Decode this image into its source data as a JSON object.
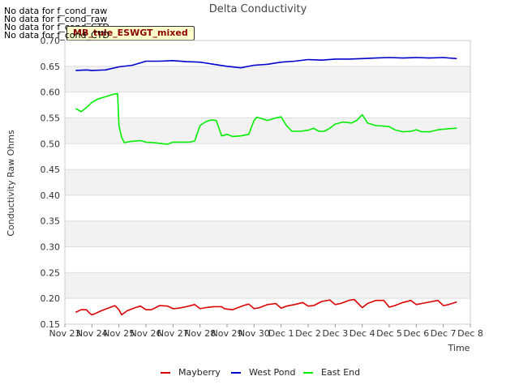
{
  "notices": [
    "No data for f_cond_raw",
    "No data for f_cond_raw",
    "No data for f_cond_CTD",
    "No data for f_cond_CTD"
  ],
  "badge": "MB_tule_ESWGT_mixed",
  "chart_data": {
    "type": "line",
    "title": "Delta Conductivity",
    "xlabel": "Time",
    "ylabel": "Conductivity Raw Ohms",
    "ylim": [
      0.15,
      0.7
    ],
    "yticks": [
      0.15,
      0.2,
      0.25,
      0.3,
      0.35,
      0.4,
      0.45,
      0.5,
      0.55,
      0.6,
      0.65,
      0.7
    ],
    "yticklabels": [
      "0.15",
      "0.20",
      "0.25",
      "0.30",
      "0.35",
      "0.40",
      "0.45",
      "0.50",
      "0.55",
      "0.60",
      "0.65",
      "0.70"
    ],
    "xlim": [
      0,
      15
    ],
    "xticks": [
      0,
      1,
      2,
      3,
      4,
      5,
      6,
      7,
      8,
      9,
      10,
      11,
      12,
      13,
      14,
      15
    ],
    "xticklabels": [
      "Nov 23",
      "Nov 24",
      "Nov 25",
      "Nov 26",
      "Nov 27",
      "Nov 28",
      "Nov 29",
      "Nov 30",
      "Dec 1",
      "Dec 2",
      "Dec 3",
      "Dec 4",
      "Dec 5",
      "Dec 6",
      "Dec 7",
      "Dec 8"
    ],
    "grid": true,
    "legend_position": "bottom",
    "series": [
      {
        "name": "Mayberry",
        "color": "#dd0000",
        "x": [
          0.4,
          0.6,
          0.8,
          0.9,
          1.0,
          1.1,
          1.3,
          1.5,
          1.7,
          1.85,
          2.0,
          2.1,
          2.3,
          2.6,
          2.8,
          3.0,
          3.2,
          3.5,
          3.8,
          4.0,
          4.2,
          4.5,
          4.8,
          5.0,
          5.2,
          5.5,
          5.8,
          5.9,
          6.2,
          6.5,
          6.6,
          6.8,
          7.0,
          7.2,
          7.5,
          7.8,
          8.0,
          8.2,
          8.5,
          8.8,
          9.0,
          9.2,
          9.5,
          9.8,
          10.0,
          10.2,
          10.5,
          10.7,
          11.0,
          11.2,
          11.5,
          11.8,
          12.0,
          12.2,
          12.5,
          12.8,
          13.0,
          13.2,
          13.5,
          13.8,
          14.0,
          14.2,
          14.5
        ],
        "y": [
          0.173,
          0.178,
          0.178,
          0.172,
          0.168,
          0.17,
          0.175,
          0.179,
          0.183,
          0.186,
          0.178,
          0.168,
          0.176,
          0.182,
          0.185,
          0.178,
          0.178,
          0.186,
          0.185,
          0.18,
          0.181,
          0.184,
          0.188,
          0.18,
          0.182,
          0.184,
          0.184,
          0.18,
          0.178,
          0.184,
          0.186,
          0.189,
          0.18,
          0.182,
          0.188,
          0.19,
          0.181,
          0.185,
          0.188,
          0.192,
          0.185,
          0.186,
          0.194,
          0.197,
          0.188,
          0.19,
          0.196,
          0.198,
          0.182,
          0.19,
          0.196,
          0.196,
          0.183,
          0.186,
          0.192,
          0.196,
          0.188,
          0.19,
          0.193,
          0.196,
          0.186,
          0.188,
          0.193
        ]
      },
      {
        "name": "West Pond",
        "color": "#0000cc",
        "x": [
          0.4,
          0.8,
          1.0,
          1.5,
          2.0,
          2.5,
          3.0,
          3.5,
          4.0,
          4.5,
          5.0,
          5.5,
          6.0,
          6.5,
          7.0,
          7.5,
          8.0,
          8.5,
          9.0,
          9.5,
          10.0,
          10.5,
          11.0,
          11.5,
          12.0,
          12.5,
          13.0,
          13.5,
          14.0,
          14.5
        ],
        "y": [
          0.642,
          0.643,
          0.642,
          0.643,
          0.649,
          0.652,
          0.66,
          0.66,
          0.661,
          0.659,
          0.658,
          0.654,
          0.65,
          0.647,
          0.652,
          0.654,
          0.658,
          0.66,
          0.663,
          0.662,
          0.664,
          0.664,
          0.665,
          0.666,
          0.667,
          0.666,
          0.667,
          0.666,
          0.667,
          0.665
        ]
      },
      {
        "name": "East End",
        "color": "#00ee00",
        "x": [
          0.4,
          0.6,
          0.8,
          1.0,
          1.2,
          1.5,
          1.8,
          1.95,
          2.0,
          2.1,
          2.2,
          2.4,
          2.6,
          2.8,
          3.0,
          3.3,
          3.6,
          3.8,
          4.0,
          4.3,
          4.6,
          4.8,
          5.0,
          5.2,
          5.4,
          5.6,
          5.8,
          6.0,
          6.2,
          6.5,
          6.8,
          7.0,
          7.1,
          7.2,
          7.5,
          7.8,
          8.0,
          8.2,
          8.4,
          8.7,
          9.0,
          9.2,
          9.4,
          9.6,
          9.8,
          10.0,
          10.3,
          10.6,
          10.8,
          11.0,
          11.2,
          11.5,
          11.8,
          12.0,
          12.2,
          12.5,
          12.8,
          13.0,
          13.2,
          13.5,
          13.8,
          14.0,
          14.2,
          14.5
        ],
        "y": [
          0.568,
          0.562,
          0.57,
          0.58,
          0.586,
          0.591,
          0.596,
          0.597,
          0.535,
          0.512,
          0.502,
          0.504,
          0.505,
          0.506,
          0.503,
          0.502,
          0.5,
          0.499,
          0.503,
          0.503,
          0.503,
          0.505,
          0.535,
          0.542,
          0.546,
          0.545,
          0.515,
          0.518,
          0.514,
          0.515,
          0.518,
          0.545,
          0.551,
          0.55,
          0.545,
          0.55,
          0.552,
          0.535,
          0.524,
          0.524,
          0.526,
          0.53,
          0.524,
          0.524,
          0.53,
          0.538,
          0.542,
          0.54,
          0.545,
          0.556,
          0.54,
          0.535,
          0.534,
          0.533,
          0.527,
          0.523,
          0.524,
          0.527,
          0.523,
          0.523,
          0.527,
          0.528,
          0.529,
          0.53
        ]
      }
    ]
  }
}
